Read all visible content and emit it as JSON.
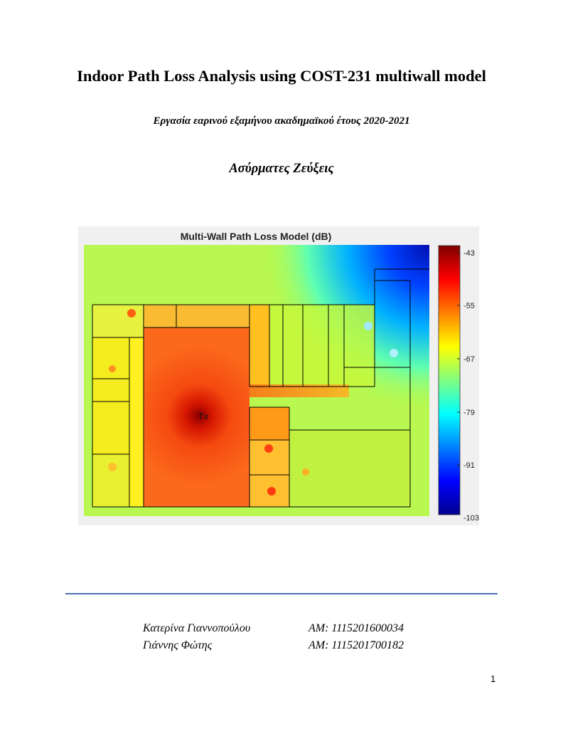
{
  "document": {
    "title": "Indoor Path Loss Analysis using COST-231 multiwall model",
    "subtitle": "Εργασία εαρινού εξαμήνου ακαδημαϊκού έτους 2020-2021",
    "course": "Ασύρματες Ζεύξεις",
    "page_number": "1"
  },
  "authors": [
    {
      "name": "Κατερίνα Γιαννοπούλου",
      "am": "AM: 1115201600034"
    },
    {
      "name": "Γιάννης Φώτης",
      "am": "AM: 1115201700182"
    }
  ],
  "figure": {
    "title": "Multi-Wall Path Loss Model (dB)",
    "tx_label": "Tx",
    "colorbar_ticks": [
      "-43",
      "-55",
      "-67",
      "-79",
      "-91",
      "-103"
    ],
    "colormap": "jet",
    "background": "#f0f0f0"
  },
  "colors": {
    "rule": "#4a72b0",
    "walls": "#000000"
  }
}
